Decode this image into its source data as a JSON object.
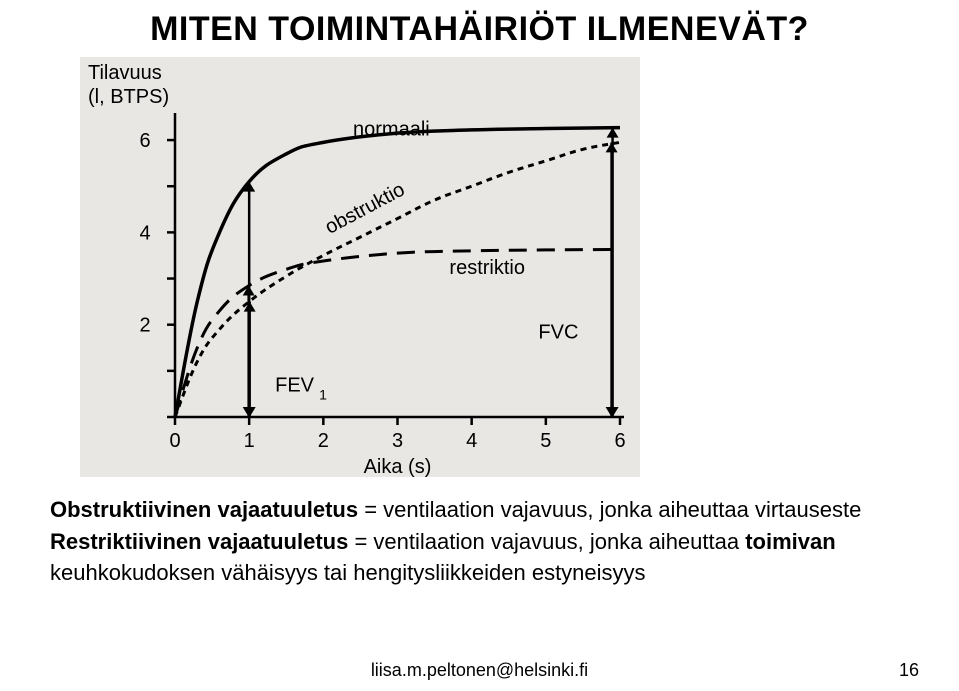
{
  "title": "MITEN TOIMINTAHÄIRIÖT ILMENEVÄT?",
  "chart": {
    "type": "line",
    "bg_color": "#e9e7e4",
    "axis_color": "#000000",
    "grid_color": "#e9e7e4",
    "line_color": "#000000",
    "line_width_normal": 3.5,
    "line_width_dash": 3,
    "dash_pattern_obstruktio": "6,5",
    "dash_pattern_restriktio": "18,10",
    "arrow_color": "#000000",
    "font_family": "Arial",
    "title_fontsize": 20,
    "label_fontsize": 20,
    "tick_fontsize": 20,
    "ylabel_line1": "Tilavuus",
    "ylabel_line2": "(l, BTPS)",
    "xlabel": "Aika (s)",
    "xlim": [
      0,
      6
    ],
    "ylim": [
      0,
      6.5
    ],
    "xticks": [
      0,
      1,
      2,
      3,
      4,
      5,
      6
    ],
    "yticks": [
      0,
      2,
      4,
      6
    ],
    "curves": {
      "normaali": {
        "label": "normaali",
        "points": [
          [
            0,
            0
          ],
          [
            0.3,
            2.5
          ],
          [
            0.6,
            4.0
          ],
          [
            1.0,
            5.1
          ],
          [
            1.5,
            5.7
          ],
          [
            2.0,
            5.95
          ],
          [
            3.0,
            6.15
          ],
          [
            4.0,
            6.22
          ],
          [
            5.0,
            6.25
          ],
          [
            6.0,
            6.27
          ]
        ]
      },
      "obstruktio": {
        "label": "obstruktio",
        "points": [
          [
            0,
            0
          ],
          [
            0.3,
            1.2
          ],
          [
            0.6,
            1.9
          ],
          [
            1.0,
            2.5
          ],
          [
            1.5,
            3.05
          ],
          [
            2.0,
            3.5
          ],
          [
            2.5,
            3.9
          ],
          [
            3.0,
            4.3
          ],
          [
            3.5,
            4.7
          ],
          [
            4.0,
            5.0
          ],
          [
            4.5,
            5.3
          ],
          [
            5.0,
            5.55
          ],
          [
            5.5,
            5.8
          ],
          [
            6.0,
            5.95
          ]
        ]
      },
      "restriktio": {
        "label": "restriktio",
        "points": [
          [
            0,
            0
          ],
          [
            0.3,
            1.5
          ],
          [
            0.6,
            2.3
          ],
          [
            1.0,
            2.85
          ],
          [
            1.5,
            3.2
          ],
          [
            2.0,
            3.38
          ],
          [
            3.0,
            3.55
          ],
          [
            4.0,
            3.6
          ],
          [
            5.0,
            3.62
          ],
          [
            6.0,
            3.63
          ]
        ]
      }
    },
    "annotations": {
      "fev1_label": "FEV",
      "fev1_sub": "1",
      "fvc_label": "FVC"
    }
  },
  "body": {
    "line1_b": "Obstruktiivinen vajaatuuletus",
    "line1_rest": " = ventilaation vajavuus, jonka aiheuttaa virtauseste",
    "line2_b": "Restriktiivinen vajaatuuletus",
    "line2_rest": " = ventilaation vajavuus, jonka aiheuttaa ",
    "line2_b2": "toimivan",
    "line3": "keuhkokudoksen vähäisyys tai hengitysliikkeiden estyneisyys"
  },
  "footer": {
    "email": "liisa.m.peltonen@helsinki.fi",
    "page": "16"
  }
}
